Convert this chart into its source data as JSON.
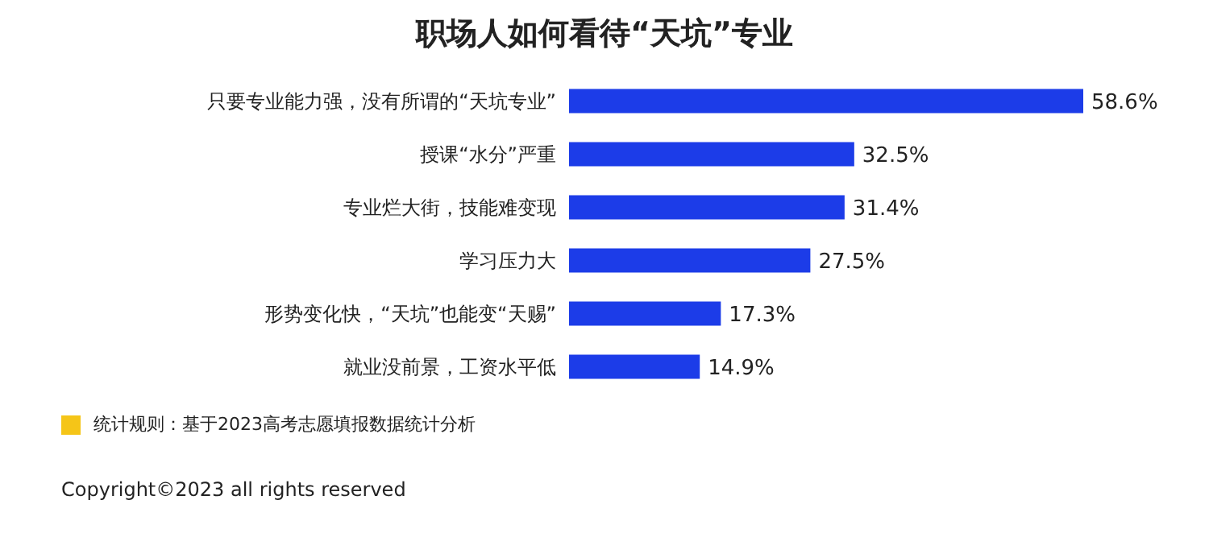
{
  "chart_data": {
    "type": "bar",
    "orientation": "horizontal",
    "title": "职场人如何看待“天坑”专业",
    "categories": [
      "只要专业能力强，没有所谓的“天坑专业”",
      "授课“水分”严重",
      "专业烂大街，技能难变现",
      "学习压力大",
      "形势变化快，“天坑”也能变“天赐”",
      "就业没前景，工资水平低"
    ],
    "values": [
      58.6,
      32.5,
      31.4,
      27.5,
      17.3,
      14.9
    ],
    "value_labels": [
      "58.6%",
      "32.5%",
      "31.4%",
      "27.5%",
      "17.3%",
      "14.9%"
    ],
    "color": "#1c3ce8",
    "annotations": [
      "统计规则：基于2023高考志愿填报数据统计分析",
      "Copyright©2023 all rights reserved"
    ]
  }
}
